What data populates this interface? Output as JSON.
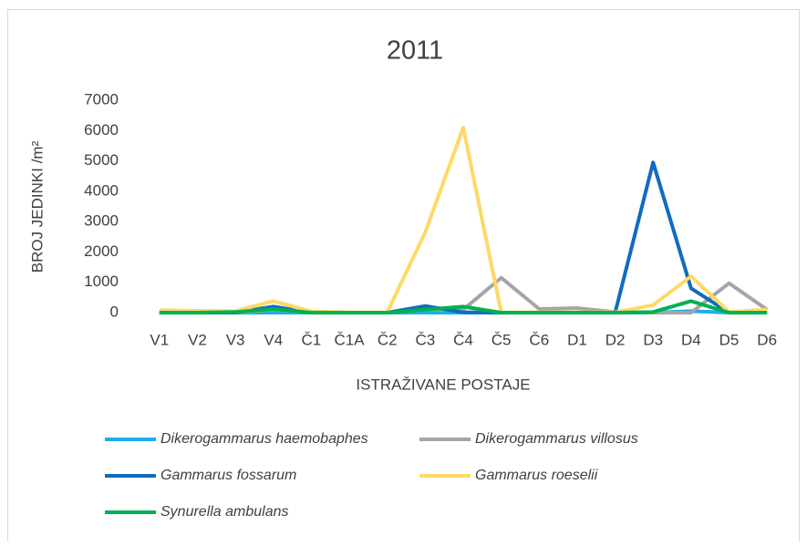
{
  "chart_data": {
    "type": "line",
    "title": "2011",
    "y_label": "BROJ JEDINKI /m²",
    "x_label": "ISTRAŽIVANE POSTAJE",
    "categories": [
      "V1",
      "V2",
      "V3",
      "V4",
      "Č1",
      "Č1A",
      "Č2",
      "Č3",
      "Č4",
      "Č5",
      "Č6",
      "D1",
      "D2",
      "D3",
      "D4",
      "D5",
      "D6"
    ],
    "ylim": [
      0,
      7000
    ],
    "yticks": [
      0,
      1000,
      2000,
      3000,
      4000,
      5000,
      6000,
      7000
    ],
    "grid": false,
    "series": [
      {
        "name": "Dikerogammarus haemobaphes",
        "color": "#1cadeb",
        "values": [
          0,
          0,
          0,
          0,
          0,
          0,
          0,
          0,
          0,
          0,
          0,
          0,
          0,
          0,
          50,
          0,
          0
        ]
      },
      {
        "name": "Dikerogammarus villosus",
        "color": "#a5a5a5",
        "values": [
          0,
          0,
          0,
          100,
          0,
          0,
          0,
          100,
          100,
          1150,
          120,
          150,
          20,
          0,
          0,
          970,
          100
        ]
      },
      {
        "name": "Gammarus fossarum",
        "color": "#0f6cc0",
        "values": [
          0,
          0,
          0,
          200,
          0,
          0,
          0,
          220,
          10,
          0,
          0,
          0,
          0,
          4950,
          800,
          0,
          0
        ]
      },
      {
        "name": "Gammarus roeselii",
        "color": "#ffd966",
        "values": [
          80,
          60,
          50,
          380,
          40,
          10,
          10,
          2650,
          6100,
          10,
          10,
          10,
          10,
          250,
          1200,
          20,
          100
        ]
      },
      {
        "name": "Synurella ambulans",
        "color": "#00b050",
        "values": [
          0,
          0,
          20,
          120,
          0,
          0,
          0,
          100,
          200,
          0,
          0,
          0,
          0,
          20,
          380,
          0,
          0
        ]
      }
    ]
  }
}
